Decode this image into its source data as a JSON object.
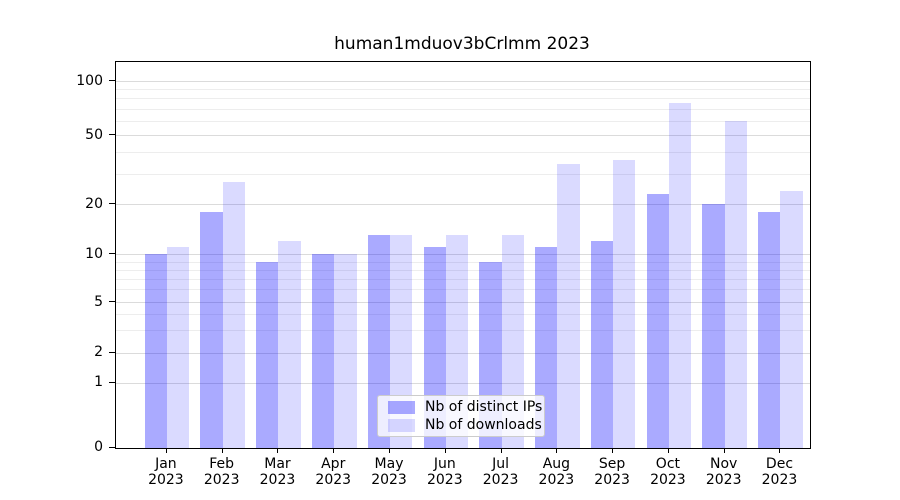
{
  "title": "human1mduov3bCrlmm 2023",
  "colors": {
    "distinct_ips_hex": "#aaaaf8",
    "downloads_hex": "#dcdcf8",
    "distinct_ips_fill": "rgba(0,0,255,0.335)",
    "downloads_fill": "rgba(0,0,255,0.145)",
    "grid_major": "#dbdbdb",
    "grid_minor": "#ededed",
    "axis": "#000000"
  },
  "legend": {
    "ips_label": "Nb of distinct IPs",
    "downloads_label": "Nb of downloads",
    "position": "lower center"
  },
  "chart_data": {
    "type": "bar",
    "title": "human1mduov3bCrlmm 2023",
    "categories": [
      "Jan",
      "Feb",
      "Mar",
      "Apr",
      "May",
      "Jun",
      "Jul",
      "Aug",
      "Sep",
      "Oct",
      "Nov",
      "Dec"
    ],
    "year_label": "2023",
    "series": [
      {
        "name": "Nb of distinct IPs",
        "values": [
          10,
          18,
          9,
          10,
          13,
          11,
          9,
          11,
          12,
          23,
          20,
          18
        ]
      },
      {
        "name": "Nb of downloads",
        "values": [
          11,
          27,
          12,
          10,
          13,
          13,
          13,
          34,
          36,
          75,
          60,
          24
        ]
      }
    ],
    "xlabel": "",
    "ylabel": "",
    "y_scale": "symlog",
    "y_major_ticks": [
      0,
      1,
      2,
      5,
      10,
      20,
      50,
      100
    ],
    "y_minor_ticks": [
      3,
      4,
      6,
      7,
      8,
      9,
      30,
      40,
      60,
      70,
      80,
      90
    ],
    "ylim": [
      0,
      110
    ],
    "grid": "on",
    "legend_position": "lower center"
  }
}
